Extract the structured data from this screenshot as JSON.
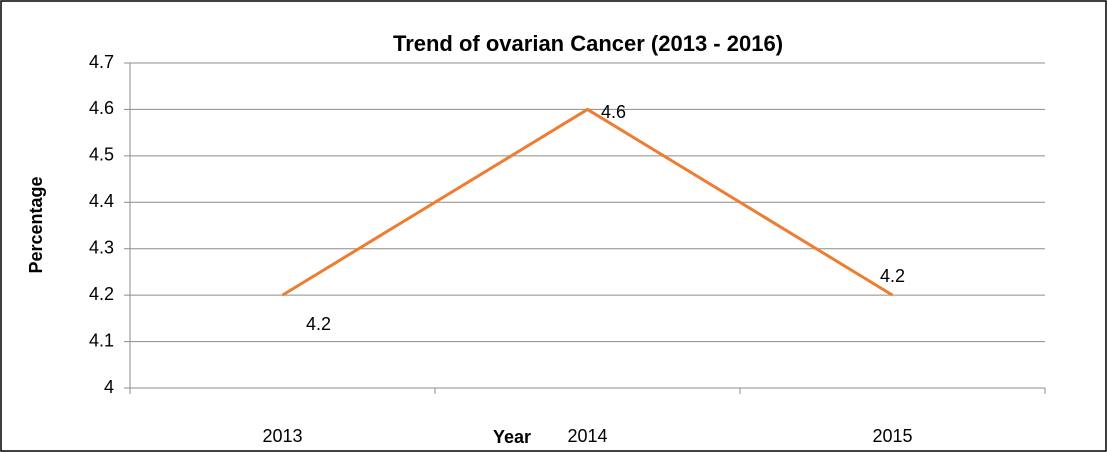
{
  "chart_data": {
    "type": "line",
    "title": "Trend of ovarian Cancer (2013 - 2016)",
    "x_label": "Year",
    "y_label": "Percentage",
    "categories": [
      "2013",
      "2014",
      "2015"
    ],
    "values": [
      4.2,
      4.6,
      4.2
    ],
    "color": "#ed7d31",
    "ylim": [
      4,
      4.7
    ],
    "yticks": [
      4,
      4.1,
      4.2,
      4.3,
      4.4,
      4.5,
      4.6,
      4.7
    ],
    "grid": true
  }
}
